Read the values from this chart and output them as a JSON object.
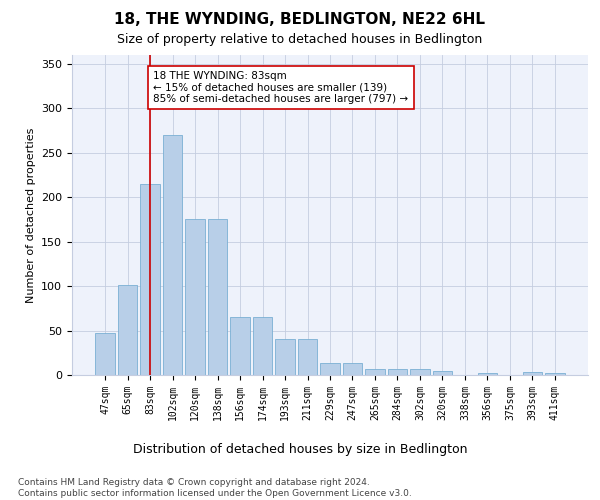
{
  "title1": "18, THE WYNDING, BEDLINGTON, NE22 6HL",
  "title2": "Size of property relative to detached houses in Bedlington",
  "xlabel": "Distribution of detached houses by size in Bedlington",
  "ylabel": "Number of detached properties",
  "categories": [
    "47sqm",
    "65sqm",
    "83sqm",
    "102sqm",
    "120sqm",
    "138sqm",
    "156sqm",
    "174sqm",
    "193sqm",
    "211sqm",
    "229sqm",
    "247sqm",
    "265sqm",
    "284sqm",
    "302sqm",
    "320sqm",
    "338sqm",
    "356sqm",
    "375sqm",
    "393sqm",
    "411sqm"
  ],
  "bar_values": [
    47,
    101,
    215,
    270,
    175,
    175,
    65,
    65,
    40,
    40,
    13,
    13,
    7,
    7,
    7,
    4,
    0,
    2,
    0,
    3,
    2
  ],
  "bar_color": "#b8cfe8",
  "bar_edge_color": "#7aafd4",
  "vline_x_idx": 2,
  "vline_color": "#cc0000",
  "annotation_text": "18 THE WYNDING: 83sqm\n← 15% of detached houses are smaller (139)\n85% of semi-detached houses are larger (797) →",
  "annotation_box_color": "#ffffff",
  "annotation_box_edge": "#cc0000",
  "ylim": [
    0,
    360
  ],
  "yticks": [
    0,
    50,
    100,
    150,
    200,
    250,
    300,
    350
  ],
  "footer": "Contains HM Land Registry data © Crown copyright and database right 2024.\nContains public sector information licensed under the Open Government Licence v3.0.",
  "bg_color": "#eef2fb",
  "title1_fontsize": 11,
  "title2_fontsize": 9,
  "ylabel_fontsize": 8,
  "xlabel_fontsize": 9,
  "tick_fontsize": 7,
  "ytick_fontsize": 8,
  "footer_fontsize": 6.5,
  "annotation_fontsize": 7.5
}
